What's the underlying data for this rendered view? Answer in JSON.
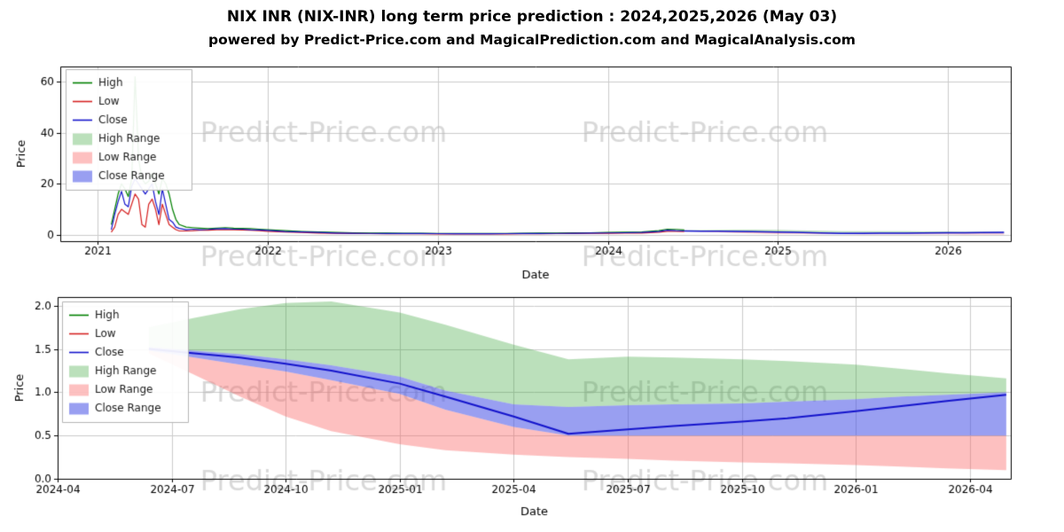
{
  "title": "NIX INR (NIX-INR) long term price prediction : 2024,2025,2026 (May 03)",
  "subtitle": "powered by Predict-Price.com and MagicalPrediction.com and MagicalAnalysis.com",
  "watermark_text": "Predict-Price.com",
  "colors": {
    "high": "#008000",
    "low": "#d62222",
    "close": "#1414cc",
    "high_range": "rgba(44,160,44,0.32)",
    "low_range": "rgba(250,90,90,0.38)",
    "close_range": "rgba(70,80,230,0.55)",
    "grid": "#cccccc",
    "watermark": "rgba(180,180,180,0.5)"
  },
  "chart_data": [
    {
      "type": "line",
      "title": "",
      "xlabel": "Date",
      "ylabel": "Price",
      "xlim": [
        2020.78,
        2026.37
      ],
      "ylim": [
        -2.5,
        66
      ],
      "grid": true,
      "legend_position": "upper left",
      "xticks": [
        2021,
        2022,
        2023,
        2024,
        2025,
        2026
      ],
      "xtick_labels": [
        "2021",
        "2022",
        "2023",
        "2024",
        "2025",
        "2026"
      ],
      "yticks": [
        0,
        20,
        40,
        60
      ],
      "ytick_labels": [
        "0",
        "20",
        "40",
        "60"
      ],
      "legend": [
        {
          "label": "High",
          "swatch": "line",
          "color": "high"
        },
        {
          "label": "Low",
          "swatch": "line",
          "color": "low"
        },
        {
          "label": "Close",
          "swatch": "line",
          "color": "close"
        },
        {
          "label": "High Range",
          "swatch": "band",
          "color": "high_range"
        },
        {
          "label": "Low Range",
          "swatch": "band",
          "color": "low_range"
        },
        {
          "label": "Close Range",
          "swatch": "band",
          "color": "close_range"
        }
      ],
      "series": [
        {
          "name": "High Range",
          "kind": "band",
          "color": "high_range",
          "x": [
            2024.45,
            2024.55,
            2024.65,
            2024.75,
            2024.85,
            2025.0,
            2025.1,
            2025.25,
            2025.37,
            2025.5,
            2025.6,
            2025.75,
            2025.85,
            2026.0,
            2026.1,
            2026.2,
            2026.33
          ],
          "upper": [
            1.75,
            1.86,
            1.96,
            2.03,
            2.05,
            1.92,
            1.78,
            1.55,
            1.38,
            1.41,
            1.4,
            1.38,
            1.36,
            1.32,
            1.27,
            1.22,
            1.16
          ],
          "lower": [
            1.52,
            1.48,
            1.44,
            1.38,
            1.31,
            1.18,
            1.02,
            0.86,
            0.83,
            0.85,
            0.86,
            0.87,
            0.89,
            0.92,
            0.95,
            0.97,
            1.0
          ]
        },
        {
          "name": "Low Range",
          "kind": "band",
          "color": "low_range",
          "x": [
            2024.45,
            2024.55,
            2024.65,
            2024.75,
            2024.85,
            2025.0,
            2025.1,
            2025.25,
            2025.37,
            2025.5,
            2025.6,
            2025.75,
            2025.85,
            2026.0,
            2026.1,
            2026.2,
            2026.33
          ],
          "upper": [
            1.48,
            1.4,
            1.32,
            1.24,
            1.14,
            0.98,
            0.8,
            0.6,
            0.5,
            0.5,
            0.5,
            0.5,
            0.5,
            0.5,
            0.5,
            0.5,
            0.5
          ],
          "lower": [
            1.45,
            1.2,
            0.95,
            0.72,
            0.55,
            0.4,
            0.33,
            0.28,
            0.25,
            0.23,
            0.21,
            0.19,
            0.18,
            0.16,
            0.14,
            0.12,
            0.1
          ]
        },
        {
          "name": "Close Range",
          "kind": "band",
          "color": "close_range",
          "x": [
            2024.45,
            2024.55,
            2024.65,
            2024.75,
            2024.85,
            2025.0,
            2025.1,
            2025.25,
            2025.37,
            2025.5,
            2025.6,
            2025.75,
            2025.85,
            2026.0,
            2026.1,
            2026.2,
            2026.33
          ],
          "upper": [
            1.52,
            1.48,
            1.44,
            1.38,
            1.31,
            1.18,
            1.02,
            0.86,
            0.83,
            0.85,
            0.86,
            0.87,
            0.89,
            0.92,
            0.95,
            0.97,
            1.0
          ],
          "lower": [
            1.48,
            1.4,
            1.32,
            1.24,
            1.14,
            0.98,
            0.8,
            0.6,
            0.5,
            0.5,
            0.5,
            0.5,
            0.5,
            0.5,
            0.5,
            0.5,
            0.5
          ]
        },
        {
          "name": "High",
          "kind": "line",
          "color": "high",
          "width": 1.2,
          "x": [
            2021.08,
            2021.1,
            2021.12,
            2021.14,
            2021.16,
            2021.18,
            2021.2,
            2021.22,
            2021.24,
            2021.26,
            2021.28,
            2021.3,
            2021.32,
            2021.34,
            2021.36,
            2021.38,
            2021.4,
            2021.42,
            2021.44,
            2021.46,
            2021.48,
            2021.52,
            2021.56,
            2021.6,
            2021.65,
            2021.7,
            2021.75,
            2021.8,
            2021.85,
            2021.9,
            2021.95,
            2022.0,
            2022.1,
            2022.2,
            2022.3,
            2022.4,
            2022.5,
            2022.6,
            2022.7,
            2022.8,
            2022.9,
            2023.0,
            2023.1,
            2023.2,
            2023.3,
            2023.4,
            2023.5,
            2023.6,
            2023.7,
            2023.8,
            2023.9,
            2024.0,
            2024.1,
            2024.2,
            2024.3,
            2024.35,
            2024.4,
            2024.45
          ],
          "y": [
            4,
            10,
            16,
            20,
            18,
            15,
            22,
            62,
            30,
            22,
            20,
            21,
            24,
            20,
            16,
            22,
            20,
            16,
            10,
            6,
            4,
            3,
            2.8,
            2.6,
            2.4,
            2.6,
            2.8,
            2.6,
            2.5,
            2.4,
            2.2,
            2.0,
            1.6,
            1.3,
            1.1,
            0.9,
            0.8,
            0.7,
            0.65,
            0.6,
            0.6,
            0.55,
            0.5,
            0.5,
            0.52,
            0.55,
            0.6,
            0.65,
            0.7,
            0.75,
            0.8,
            0.9,
            1.0,
            1.1,
            1.6,
            2.2,
            2.1,
            1.9
          ]
        },
        {
          "name": "Low",
          "kind": "line",
          "color": "low",
          "width": 1.2,
          "x": [
            2021.08,
            2021.1,
            2021.12,
            2021.14,
            2021.16,
            2021.18,
            2021.2,
            2021.22,
            2021.24,
            2021.26,
            2021.28,
            2021.3,
            2021.32,
            2021.34,
            2021.36,
            2021.38,
            2021.4,
            2021.42,
            2021.44,
            2021.46,
            2021.48,
            2021.52,
            2021.56,
            2021.6,
            2021.65,
            2021.7,
            2021.75,
            2021.8,
            2021.85,
            2021.9,
            2021.95,
            2022.0,
            2022.1,
            2022.2,
            2022.3,
            2022.4,
            2022.5,
            2022.6,
            2022.7,
            2022.8,
            2022.9,
            2023.0,
            2023.1,
            2023.2,
            2023.3,
            2023.4,
            2023.5,
            2023.6,
            2023.7,
            2023.8,
            2023.9,
            2024.0,
            2024.1,
            2024.2,
            2024.3,
            2024.35,
            2024.4,
            2024.45
          ],
          "y": [
            1,
            3,
            8,
            10,
            9,
            8,
            12,
            16,
            14,
            4,
            3,
            12,
            14,
            10,
            4,
            12,
            8,
            4,
            3,
            2,
            1.5,
            1.5,
            1.6,
            1.8,
            1.8,
            2.0,
            2.0,
            2.0,
            1.9,
            1.8,
            1.6,
            1.4,
            1.1,
            0.9,
            0.7,
            0.6,
            0.5,
            0.45,
            0.4,
            0.4,
            0.38,
            0.35,
            0.33,
            0.32,
            0.34,
            0.35,
            0.4,
            0.42,
            0.45,
            0.5,
            0.55,
            0.6,
            0.65,
            0.7,
            1.0,
            1.4,
            1.4,
            1.3
          ]
        },
        {
          "name": "Close",
          "kind": "line",
          "color": "close",
          "width": 1.2,
          "x": [
            2021.08,
            2021.1,
            2021.12,
            2021.14,
            2021.16,
            2021.18,
            2021.2,
            2021.22,
            2021.24,
            2021.26,
            2021.28,
            2021.3,
            2021.32,
            2021.34,
            2021.36,
            2021.38,
            2021.4,
            2021.42,
            2021.44,
            2021.46,
            2021.48,
            2021.52,
            2021.56,
            2021.6,
            2021.65,
            2021.7,
            2021.75,
            2021.8,
            2021.85,
            2021.9,
            2021.95,
            2022.0,
            2022.1,
            2022.2,
            2022.3,
            2022.4,
            2022.5,
            2022.6,
            2022.7,
            2022.8,
            2022.9,
            2023.0,
            2023.1,
            2023.2,
            2023.3,
            2023.4,
            2023.5,
            2023.6,
            2023.7,
            2023.8,
            2023.9,
            2024.0,
            2024.1,
            2024.2,
            2024.3,
            2024.35,
            2024.4,
            2024.45
          ],
          "y": [
            2,
            8,
            13,
            17,
            12,
            11,
            19,
            22,
            20,
            18,
            16,
            18,
            20,
            13,
            8,
            18,
            12,
            6,
            5,
            3,
            2.5,
            2,
            2.2,
            2.0,
            2.1,
            2.3,
            2.4,
            2.2,
            2.2,
            2.0,
            1.9,
            1.7,
            1.3,
            1.1,
            0.9,
            0.7,
            0.6,
            0.55,
            0.5,
            0.5,
            0.48,
            0.45,
            0.42,
            0.4,
            0.42,
            0.45,
            0.5,
            0.52,
            0.55,
            0.6,
            0.65,
            0.72,
            0.8,
            0.9,
            1.3,
            1.8,
            1.6,
            1.5
          ]
        },
        {
          "name": "Close forecast",
          "kind": "line",
          "color": "close",
          "width": 1.5,
          "x": [
            2024.45,
            2024.55,
            2024.65,
            2024.75,
            2024.85,
            2025.0,
            2025.1,
            2025.25,
            2025.37,
            2025.5,
            2025.6,
            2025.75,
            2025.85,
            2026.0,
            2026.1,
            2026.2,
            2026.33
          ],
          "y": [
            1.5,
            1.45,
            1.4,
            1.33,
            1.25,
            1.1,
            0.95,
            0.72,
            0.52,
            0.57,
            0.61,
            0.66,
            0.7,
            0.78,
            0.84,
            0.9,
            0.97
          ]
        }
      ]
    },
    {
      "type": "line",
      "title": "",
      "xlabel": "Date",
      "ylabel": "Price",
      "xlim": [
        2024.25,
        2026.34
      ],
      "ylim": [
        0,
        2.1
      ],
      "grid": true,
      "legend_position": "upper left",
      "xticks": [
        2024.25,
        2024.5,
        2024.75,
        2025.0,
        2025.25,
        2025.5,
        2025.75,
        2026.0,
        2026.25
      ],
      "xtick_labels": [
        "2024-04",
        "2024-07",
        "2024-10",
        "2025-01",
        "2025-04",
        "2025-07",
        "2025-10",
        "2026-01",
        "2026-04"
      ],
      "yticks": [
        0,
        0.5,
        1.0,
        1.5,
        2.0
      ],
      "ytick_labels": [
        "0.0",
        "0.5",
        "1.0",
        "1.5",
        "2.0"
      ],
      "legend": [
        {
          "label": "High",
          "swatch": "line",
          "color": "high"
        },
        {
          "label": "Low",
          "swatch": "line",
          "color": "low"
        },
        {
          "label": "Close",
          "swatch": "line",
          "color": "close"
        },
        {
          "label": "High Range",
          "swatch": "band",
          "color": "high_range"
        },
        {
          "label": "Low Range",
          "swatch": "band",
          "color": "low_range"
        },
        {
          "label": "Close Range",
          "swatch": "band",
          "color": "close_range"
        }
      ],
      "series": [
        {
          "name": "High Range",
          "kind": "band",
          "color": "high_range",
          "x": [
            2024.45,
            2024.55,
            2024.65,
            2024.75,
            2024.85,
            2025.0,
            2025.1,
            2025.25,
            2025.37,
            2025.5,
            2025.6,
            2025.75,
            2025.85,
            2026.0,
            2026.1,
            2026.2,
            2026.33
          ],
          "upper": [
            1.75,
            1.86,
            1.96,
            2.03,
            2.05,
            1.92,
            1.78,
            1.55,
            1.38,
            1.41,
            1.4,
            1.38,
            1.36,
            1.32,
            1.27,
            1.22,
            1.16
          ],
          "lower": [
            1.52,
            1.48,
            1.44,
            1.38,
            1.31,
            1.18,
            1.02,
            0.86,
            0.83,
            0.85,
            0.86,
            0.87,
            0.89,
            0.92,
            0.95,
            0.97,
            1.0
          ]
        },
        {
          "name": "Low Range",
          "kind": "band",
          "color": "low_range",
          "x": [
            2024.45,
            2024.55,
            2024.65,
            2024.75,
            2024.85,
            2025.0,
            2025.1,
            2025.25,
            2025.37,
            2025.5,
            2025.6,
            2025.75,
            2025.85,
            2026.0,
            2026.1,
            2026.2,
            2026.33
          ],
          "upper": [
            1.48,
            1.4,
            1.32,
            1.24,
            1.14,
            0.98,
            0.8,
            0.6,
            0.5,
            0.5,
            0.5,
            0.5,
            0.5,
            0.5,
            0.5,
            0.5,
            0.5
          ],
          "lower": [
            1.45,
            1.2,
            0.95,
            0.72,
            0.55,
            0.4,
            0.33,
            0.28,
            0.25,
            0.23,
            0.21,
            0.19,
            0.18,
            0.16,
            0.14,
            0.12,
            0.1
          ]
        },
        {
          "name": "Close Range",
          "kind": "band",
          "color": "close_range",
          "x": [
            2024.45,
            2024.55,
            2024.65,
            2024.75,
            2024.85,
            2025.0,
            2025.1,
            2025.25,
            2025.37,
            2025.5,
            2025.6,
            2025.75,
            2025.85,
            2026.0,
            2026.1,
            2026.2,
            2026.33
          ],
          "upper": [
            1.52,
            1.48,
            1.44,
            1.38,
            1.31,
            1.18,
            1.02,
            0.86,
            0.83,
            0.85,
            0.86,
            0.87,
            0.89,
            0.92,
            0.95,
            0.97,
            1.0
          ],
          "lower": [
            1.48,
            1.4,
            1.32,
            1.24,
            1.14,
            0.98,
            0.8,
            0.6,
            0.5,
            0.5,
            0.5,
            0.5,
            0.5,
            0.5,
            0.5,
            0.5,
            0.5
          ]
        },
        {
          "name": "Close",
          "kind": "line",
          "color": "close",
          "width": 2,
          "x": [
            2024.45,
            2024.55,
            2024.65,
            2024.75,
            2024.85,
            2025.0,
            2025.1,
            2025.25,
            2025.37,
            2025.5,
            2025.6,
            2025.75,
            2025.85,
            2026.0,
            2026.1,
            2026.2,
            2026.33
          ],
          "y": [
            1.5,
            1.45,
            1.4,
            1.33,
            1.25,
            1.1,
            0.95,
            0.72,
            0.52,
            0.57,
            0.61,
            0.66,
            0.7,
            0.78,
            0.84,
            0.9,
            0.97
          ]
        }
      ]
    }
  ]
}
